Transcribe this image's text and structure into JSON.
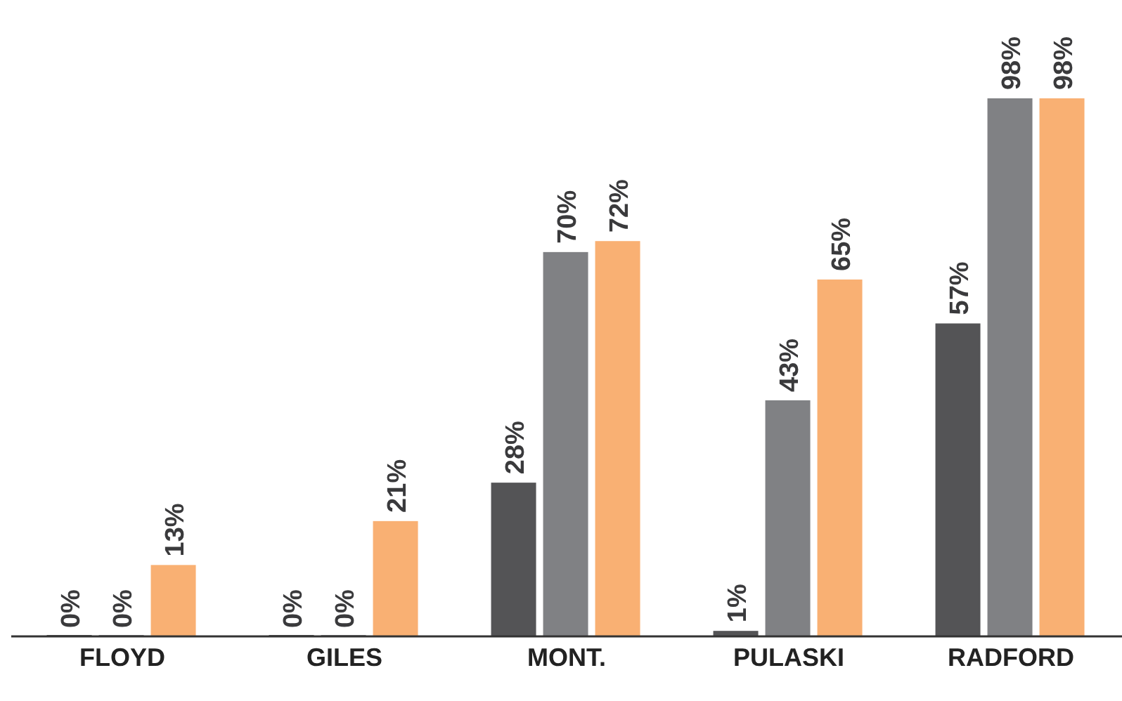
{
  "chart_data": {
    "type": "bar",
    "categories": [
      "FLOYD",
      "GILES",
      "MONT.",
      "PULASKI",
      "RADFORD"
    ],
    "series": [
      {
        "color": "#545456",
        "values": [
          0,
          0,
          28,
          1,
          57
        ],
        "value_labels": [
          "0%",
          "0%",
          "28%",
          "1%",
          "57%"
        ]
      },
      {
        "color": "#808184",
        "values": [
          0,
          0,
          70,
          43,
          98
        ],
        "value_labels": [
          "0%",
          "0%",
          "70%",
          "43%",
          "98%"
        ]
      },
      {
        "color": "#f9b073",
        "values": [
          13,
          21,
          72,
          65,
          98
        ],
        "value_labels": [
          "13%",
          "21%",
          "72%",
          "65%",
          "98%"
        ]
      }
    ],
    "grid": false,
    "legend": false
  }
}
